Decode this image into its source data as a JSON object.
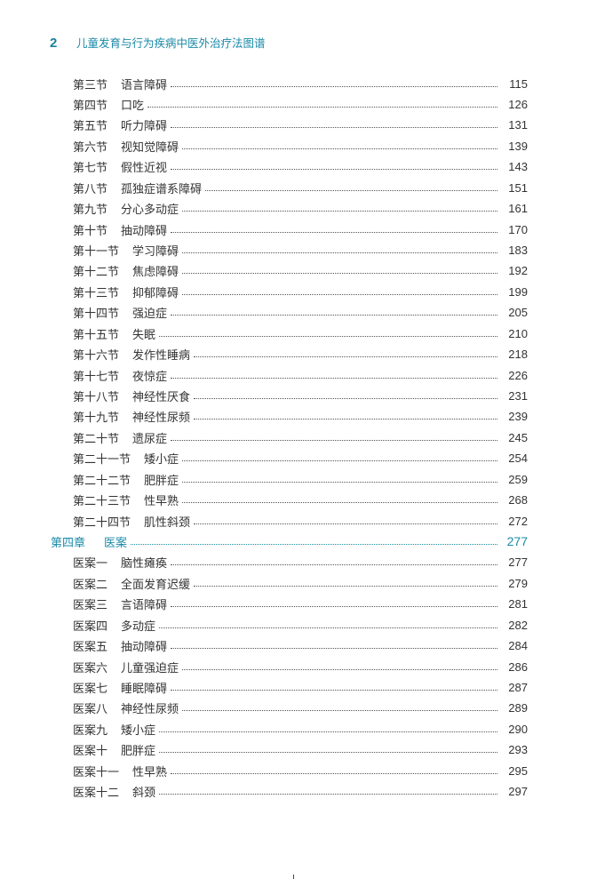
{
  "header": {
    "page_number": "2",
    "book_title": "儿童发育与行为疾病中医外治疗法图谱"
  },
  "sections": [
    {
      "num": "第三节",
      "title": "语言障碍",
      "page": "115"
    },
    {
      "num": "第四节",
      "title": "口吃",
      "page": "126"
    },
    {
      "num": "第五节",
      "title": "听力障碍",
      "page": "131"
    },
    {
      "num": "第六节",
      "title": "视知觉障碍",
      "page": "139"
    },
    {
      "num": "第七节",
      "title": "假性近视",
      "page": "143"
    },
    {
      "num": "第八节",
      "title": "孤独症谱系障碍",
      "page": "151"
    },
    {
      "num": "第九节",
      "title": "分心多动症",
      "page": "161"
    },
    {
      "num": "第十节",
      "title": "抽动障碍",
      "page": "170"
    },
    {
      "num": "第十一节",
      "title": "学习障碍",
      "page": "183"
    },
    {
      "num": "第十二节",
      "title": "焦虑障碍",
      "page": "192"
    },
    {
      "num": "第十三节",
      "title": "抑郁障碍",
      "page": "199"
    },
    {
      "num": "第十四节",
      "title": "强迫症",
      "page": "205"
    },
    {
      "num": "第十五节",
      "title": "失眠",
      "page": "210"
    },
    {
      "num": "第十六节",
      "title": "发作性睡病",
      "page": "218"
    },
    {
      "num": "第十七节",
      "title": "夜惊症",
      "page": "226"
    },
    {
      "num": "第十八节",
      "title": "神经性厌食",
      "page": "231"
    },
    {
      "num": "第十九节",
      "title": "神经性尿频",
      "page": "239"
    },
    {
      "num": "第二十节",
      "title": "遗尿症",
      "page": "245"
    },
    {
      "num": "第二十一节",
      "title": "矮小症",
      "page": "254"
    },
    {
      "num": "第二十二节",
      "title": "肥胖症",
      "page": "259"
    },
    {
      "num": "第二十三节",
      "title": "性早熟",
      "page": "268"
    },
    {
      "num": "第二十四节",
      "title": "肌性斜颈",
      "page": "272"
    }
  ],
  "chapter": {
    "num": "第四章",
    "title": "医案",
    "page": "277"
  },
  "cases": [
    {
      "num": "医案一",
      "title": "脑性瘫痪",
      "page": "277"
    },
    {
      "num": "医案二",
      "title": "全面发育迟缓",
      "page": "279"
    },
    {
      "num": "医案三",
      "title": "言语障碍",
      "page": "281"
    },
    {
      "num": "医案四",
      "title": "多动症",
      "page": "282"
    },
    {
      "num": "医案五",
      "title": "抽动障碍",
      "page": "284"
    },
    {
      "num": "医案六",
      "title": "儿童强迫症",
      "page": "286"
    },
    {
      "num": "医案七",
      "title": "睡眠障碍",
      "page": "287"
    },
    {
      "num": "医案八",
      "title": "神经性尿频",
      "page": "289"
    },
    {
      "num": "医案九",
      "title": "矮小症",
      "page": "290"
    },
    {
      "num": "医案十",
      "title": "肥胖症",
      "page": "293"
    },
    {
      "num": "医案十一",
      "title": "性早熟",
      "page": "295"
    },
    {
      "num": "医案十二",
      "title": "斜颈",
      "page": "297"
    }
  ],
  "colors": {
    "accent": "#1a8aa8",
    "text": "#333333"
  }
}
